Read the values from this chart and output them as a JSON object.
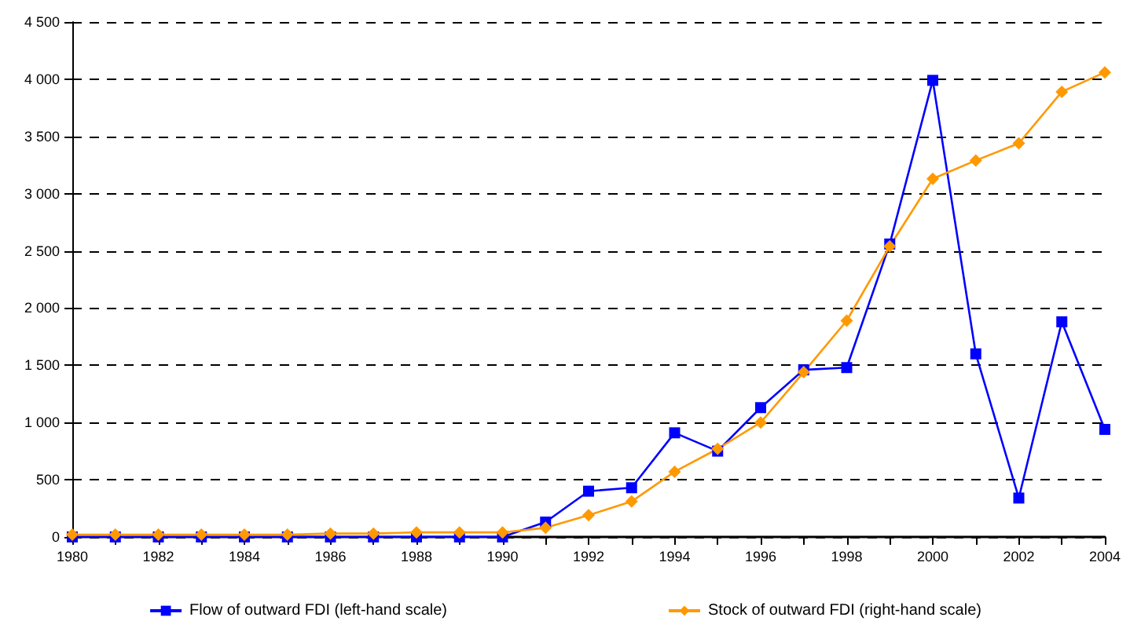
{
  "chart_data": {
    "type": "line",
    "categories": [
      "1980",
      null,
      "1982",
      null,
      "1984",
      null,
      "1986",
      null,
      "1988",
      null,
      "1990",
      null,
      "1992",
      null,
      "1994",
      null,
      "1996",
      null,
      "1998",
      null,
      "2000",
      null,
      "2002",
      null,
      "2004"
    ],
    "series": [
      {
        "name": "Flow of outward FDI (left-hand scale)",
        "color": "#0000ff",
        "marker": "square",
        "values": [
          0,
          0,
          0,
          0,
          0,
          0,
          0,
          0,
          0,
          0,
          0,
          130,
          400,
          430,
          910,
          750,
          1130,
          1460,
          1480,
          2560,
          3990,
          1600,
          340,
          1880,
          940
        ]
      },
      {
        "name": "Stock of outward FDI (right-hand scale)",
        "color": "#ff9900",
        "marker": "diamond",
        "values": [
          20,
          20,
          20,
          20,
          20,
          20,
          30,
          30,
          40,
          40,
          40,
          80,
          190,
          310,
          570,
          770,
          1000,
          1440,
          1890,
          2540,
          3130,
          3290,
          3440,
          3890,
          4060
        ]
      }
    ],
    "ylim": [
      0,
      4500
    ],
    "yticks": [
      0,
      500,
      {
        "value": 1000,
        "label": "1 000"
      },
      {
        "value": 1500,
        "label": "1 500"
      },
      {
        "value": 2000,
        "label": "2 000"
      },
      {
        "value": 2500,
        "label": "2 500"
      },
      {
        "value": 3000,
        "label": "3 000"
      },
      {
        "value": 3500,
        "label": "3 500"
      },
      {
        "value": 4000,
        "label": "4 000"
      },
      {
        "value": 4500,
        "label": "4 500"
      }
    ],
    "grid": "y",
    "legend": "bottom",
    "line_style": "solid"
  }
}
